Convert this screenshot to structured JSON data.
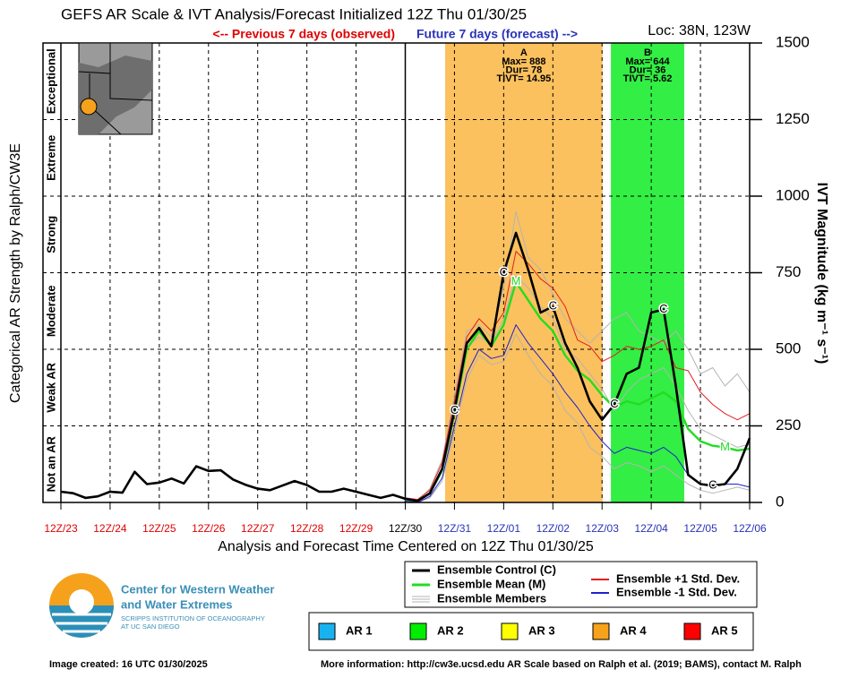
{
  "header": {
    "title": "GEFS AR Scale & IVT Analysis/Forecast Initialized 12Z Thu 01/30/25",
    "previous": "<-- Previous 7 days (observed)",
    "future": "Future 7 days (forecast) -->",
    "location": "Loc: 38N, 123W"
  },
  "chart_data": {
    "type": "line",
    "x_label": "Analysis and Forecast Time Centered on 12Z Thu 01/30/25",
    "y_label": "IVT Magnitude (kg m⁻¹ s⁻¹)",
    "xlim": [
      0,
      14
    ],
    "ylim": [
      0,
      1500
    ],
    "xticks": [
      {
        "value": 0,
        "label": "12Z/23"
      },
      {
        "value": 1,
        "label": "12Z/24"
      },
      {
        "value": 2,
        "label": "12Z/25"
      },
      {
        "value": 3,
        "label": "12Z/26"
      },
      {
        "value": 4,
        "label": "12Z/27"
      },
      {
        "value": 5,
        "label": "12Z/28"
      },
      {
        "value": 6,
        "label": "12Z/29"
      },
      {
        "value": 7,
        "label": "12Z/30"
      },
      {
        "value": 8,
        "label": "12Z/31"
      },
      {
        "value": 9,
        "label": "12Z/01"
      },
      {
        "value": 10,
        "label": "12Z/02"
      },
      {
        "value": 11,
        "label": "12Z/03"
      },
      {
        "value": 12,
        "label": "12Z/04"
      },
      {
        "value": 13,
        "label": "12Z/05"
      },
      {
        "value": 14,
        "label": "12Z/06"
      }
    ],
    "now": 7,
    "past_color": "#e00000",
    "now_color": "#000000",
    "future_color": "#2a33b8",
    "yticks": [
      0,
      250,
      500,
      750,
      1000,
      1250,
      1500
    ],
    "grid": true,
    "x": [
      0,
      0.25,
      0.5,
      0.75,
      1,
      1.25,
      1.5,
      1.75,
      2,
      2.25,
      2.5,
      2.75,
      3,
      3.25,
      3.5,
      3.75,
      4,
      4.25,
      4.5,
      4.75,
      5,
      5.25,
      5.5,
      5.75,
      6,
      6.25,
      6.5,
      6.75,
      7,
      7.25,
      7.5,
      7.75,
      8,
      8.25,
      8.5,
      8.75,
      9,
      9.25,
      9.5,
      9.75,
      10,
      10.25,
      10.5,
      10.75,
      11,
      11.25,
      11.5,
      11.75,
      12,
      12.25,
      12.5,
      12.75,
      13,
      13.25,
      13.5,
      13.75,
      14
    ],
    "members": {
      "name": "Ensemble Members",
      "color": "#b4b4b4",
      "lines": [
        [
          null,
          null,
          null,
          null,
          null,
          null,
          null,
          null,
          null,
          null,
          null,
          null,
          null,
          null,
          null,
          null,
          null,
          null,
          null,
          null,
          null,
          null,
          null,
          null,
          null,
          null,
          null,
          null,
          10,
          5,
          45,
          140,
          350,
          560,
          580,
          540,
          700,
          950,
          800,
          760,
          680,
          600,
          560,
          520,
          560,
          600,
          620,
          560,
          540,
          520,
          560,
          500,
          420,
          440,
          380,
          420,
          360
        ],
        [
          null,
          null,
          null,
          null,
          null,
          null,
          null,
          null,
          null,
          null,
          null,
          null,
          null,
          null,
          null,
          null,
          null,
          null,
          null,
          null,
          null,
          null,
          null,
          null,
          null,
          null,
          null,
          null,
          5,
          0,
          15,
          70,
          230,
          400,
          480,
          450,
          460,
          550,
          480,
          420,
          380,
          300,
          260,
          180,
          150,
          110,
          130,
          120,
          100,
          120,
          90,
          60,
          40,
          30,
          40,
          50,
          40
        ],
        [
          null,
          null,
          null,
          null,
          null,
          null,
          null,
          null,
          null,
          null,
          null,
          null,
          null,
          null,
          null,
          null,
          null,
          null,
          null,
          null,
          null,
          null,
          null,
          null,
          null,
          null,
          null,
          null,
          8,
          3,
          25,
          100,
          300,
          510,
          540,
          520,
          600,
          740,
          700,
          640,
          600,
          500,
          470,
          420,
          370,
          300,
          360,
          400,
          420,
          440,
          380,
          300,
          240,
          220,
          200,
          180,
          190
        ]
      ]
    },
    "series": [
      {
        "name": "Ensemble Control (C)",
        "color": "#000000",
        "line_label": "C",
        "values": [
          35,
          30,
          15,
          20,
          35,
          32,
          100,
          60,
          65,
          78,
          62,
          118,
          103,
          105,
          75,
          58,
          45,
          40,
          55,
          70,
          57,
          35,
          35,
          45,
          35,
          25,
          15,
          25,
          12,
          5,
          30,
          110,
          300,
          520,
          570,
          510,
          750,
          880,
          760,
          620,
          640,
          520,
          440,
          330,
          270,
          320,
          420,
          440,
          620,
          630,
          380,
          90,
          60,
          55,
          60,
          110,
          210
        ]
      },
      {
        "name": "Ensemble Mean (M)",
        "color": "#22dd22",
        "line_label": "M",
        "values": [
          null,
          null,
          null,
          null,
          null,
          null,
          null,
          null,
          null,
          null,
          null,
          null,
          null,
          null,
          null,
          null,
          null,
          null,
          null,
          null,
          null,
          null,
          null,
          null,
          null,
          null,
          null,
          null,
          10,
          5,
          30,
          105,
          290,
          500,
          560,
          510,
          580,
          720,
          660,
          600,
          560,
          480,
          430,
          400,
          350,
          310,
          330,
          320,
          340,
          360,
          330,
          240,
          200,
          185,
          180,
          170,
          175
        ]
      },
      {
        "name": "Ensemble +1 Std. Dev.",
        "color": "#e02020",
        "values": [
          null,
          null,
          null,
          null,
          null,
          null,
          null,
          null,
          null,
          null,
          null,
          null,
          null,
          null,
          null,
          null,
          null,
          null,
          null,
          null,
          null,
          null,
          null,
          null,
          null,
          null,
          null,
          null,
          15,
          10,
          40,
          130,
          330,
          540,
          600,
          560,
          620,
          820,
          780,
          730,
          700,
          640,
          530,
          510,
          460,
          480,
          510,
          500,
          510,
          530,
          440,
          430,
          360,
          320,
          290,
          270,
          290
        ]
      },
      {
        "name": "Ensemble -1 Std. Dev.",
        "color": "#2020d0",
        "values": [
          null,
          null,
          null,
          null,
          null,
          null,
          null,
          null,
          null,
          null,
          null,
          null,
          null,
          null,
          null,
          null,
          null,
          null,
          null,
          null,
          null,
          null,
          null,
          null,
          null,
          null,
          null,
          null,
          5,
          0,
          20,
          80,
          250,
          420,
          500,
          470,
          480,
          580,
          520,
          470,
          420,
          360,
          310,
          250,
          200,
          160,
          180,
          170,
          160,
          180,
          150,
          90,
          60,
          50,
          60,
          60,
          50
        ]
      }
    ],
    "ar_events": [
      {
        "label": "A",
        "start": 7.81,
        "end": 11.01,
        "color": "#fbc15e",
        "text": [
          "Max= 888",
          "Dur= 78",
          "TIVT= 14.95"
        ]
      },
      {
        "label": "B",
        "start": 11.18,
        "end": 12.67,
        "color": "#33ee44",
        "text": [
          "Max= 644",
          "Dur= 36",
          "TIVT= 5.62"
        ]
      }
    ],
    "categorical_axis": {
      "label": "Categorical AR Strength by Ralph/CW3E",
      "bands": [
        {
          "label": "Not an AR",
          "from": 0,
          "to": 250
        },
        {
          "label": "Weak AR",
          "from": 250,
          "to": 500
        },
        {
          "label": "Moderate",
          "from": 500,
          "to": 750
        },
        {
          "label": "Strong",
          "from": 750,
          "to": 1000
        },
        {
          "label": "Extreme",
          "from": 1000,
          "to": 1250
        },
        {
          "label": "Exceptional",
          "from": 1250,
          "to": 1500
        }
      ]
    },
    "ar_scale": [
      {
        "label": "AR 1",
        "color": "#17b3f0"
      },
      {
        "label": "AR 2",
        "color": "#00ee00"
      },
      {
        "label": "AR 3",
        "color": "#ffff00"
      },
      {
        "label": "AR 4",
        "color": "#f7a21b"
      },
      {
        "label": "AR 5",
        "color": "#ff0000"
      }
    ]
  },
  "logo": {
    "line1": "Center for Western Weather",
    "line2": "and Water Extremes",
    "line3": "SCRIPPS INSTITUTION OF OCEANOGRAPHY",
    "line4": "AT UC SAN DIEGO"
  },
  "footer": {
    "created": "Image created: 16 UTC 01/30/2025",
    "info": "More information: http://cw3e.ucsd.edu  AR Scale based on Ralph et al. (2019; BAMS), contact M. Ralph"
  }
}
